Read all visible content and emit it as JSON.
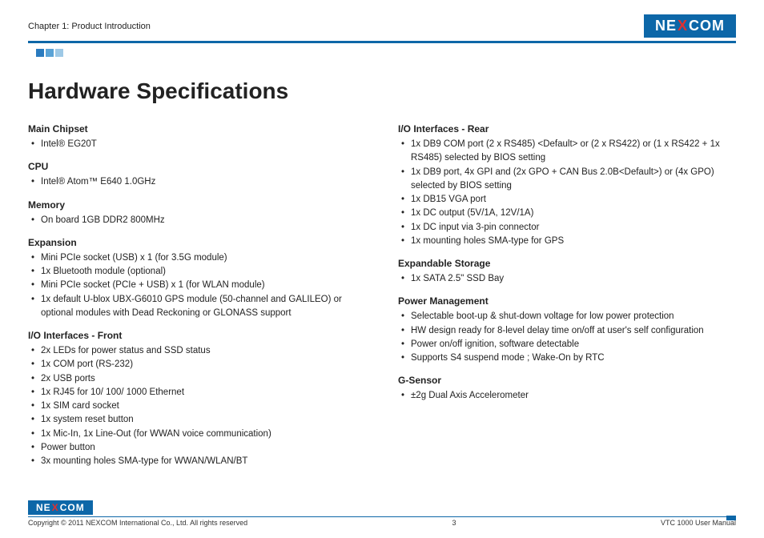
{
  "header": {
    "chapter": "Chapter 1: Product Introduction",
    "logo_left": "NE",
    "logo_x": "X",
    "logo_right": "COM"
  },
  "title": "Hardware Specifications",
  "left_col": [
    {
      "head": "Main Chipset",
      "items": [
        "Intel® EG20T"
      ]
    },
    {
      "head": "CPU",
      "items": [
        "Intel® Atom™ E640 1.0GHz"
      ]
    },
    {
      "head": "Memory",
      "items": [
        "On board 1GB DDR2 800MHz"
      ]
    },
    {
      "head": "Expansion",
      "items": [
        "Mini PCIe socket (USB) x 1 (for 3.5G module)",
        "1x Bluetooth module (optional)",
        "Mini PCIe socket (PCIe + USB) x 1 (for WLAN module)",
        "1x default U-blox UBX-G6010 GPS module (50-channel and GALILEO) or optional modules with Dead Reckoning or GLONASS support"
      ]
    },
    {
      "head": "I/O Interfaces - Front",
      "items": [
        "2x LEDs for power status and SSD status",
        "1x COM port (RS-232)",
        "2x USB ports",
        "1x RJ45 for 10/ 100/ 1000 Ethernet",
        "1x SIM card socket",
        "1x system reset button",
        "1x Mic-In, 1x Line-Out (for WWAN voice communication)",
        "Power button",
        "3x mounting holes SMA-type for WWAN/WLAN/BT"
      ]
    }
  ],
  "right_col": [
    {
      "head": "I/O Interfaces - Rear",
      "items": [
        "1x DB9 COM port (2 x RS485) <Default> or (2 x RS422) or (1 x RS422 + 1x RS485) selected by BIOS setting",
        "1x DB9 port, 4x GPI and (2x GPO + CAN Bus 2.0B<Default>) or (4x GPO) selected by BIOS setting",
        "1x DB15 VGA port",
        "1x DC output (5V/1A, 12V/1A)",
        "1x DC input via 3-pin connector",
        "1x mounting holes SMA-type for GPS"
      ]
    },
    {
      "head": "Expandable Storage",
      "items": [
        "1x SATA 2.5\" SSD Bay"
      ]
    },
    {
      "head": "Power Management",
      "items": [
        "Selectable boot-up & shut-down voltage for low power protection",
        "HW design ready for 8-level delay time on/off at user's self configuration",
        "Power on/off ignition, software detectable",
        "Supports S4 suspend mode ; Wake-On by RTC"
      ]
    },
    {
      "head": "G-Sensor",
      "items": [
        "±2g Dual Axis Accelerometer"
      ]
    }
  ],
  "footer": {
    "copyright": "Copyright © 2011 NEXCOM International Co., Ltd. All rights reserved",
    "page": "3",
    "manual": "VTC 1000 User Manual"
  }
}
